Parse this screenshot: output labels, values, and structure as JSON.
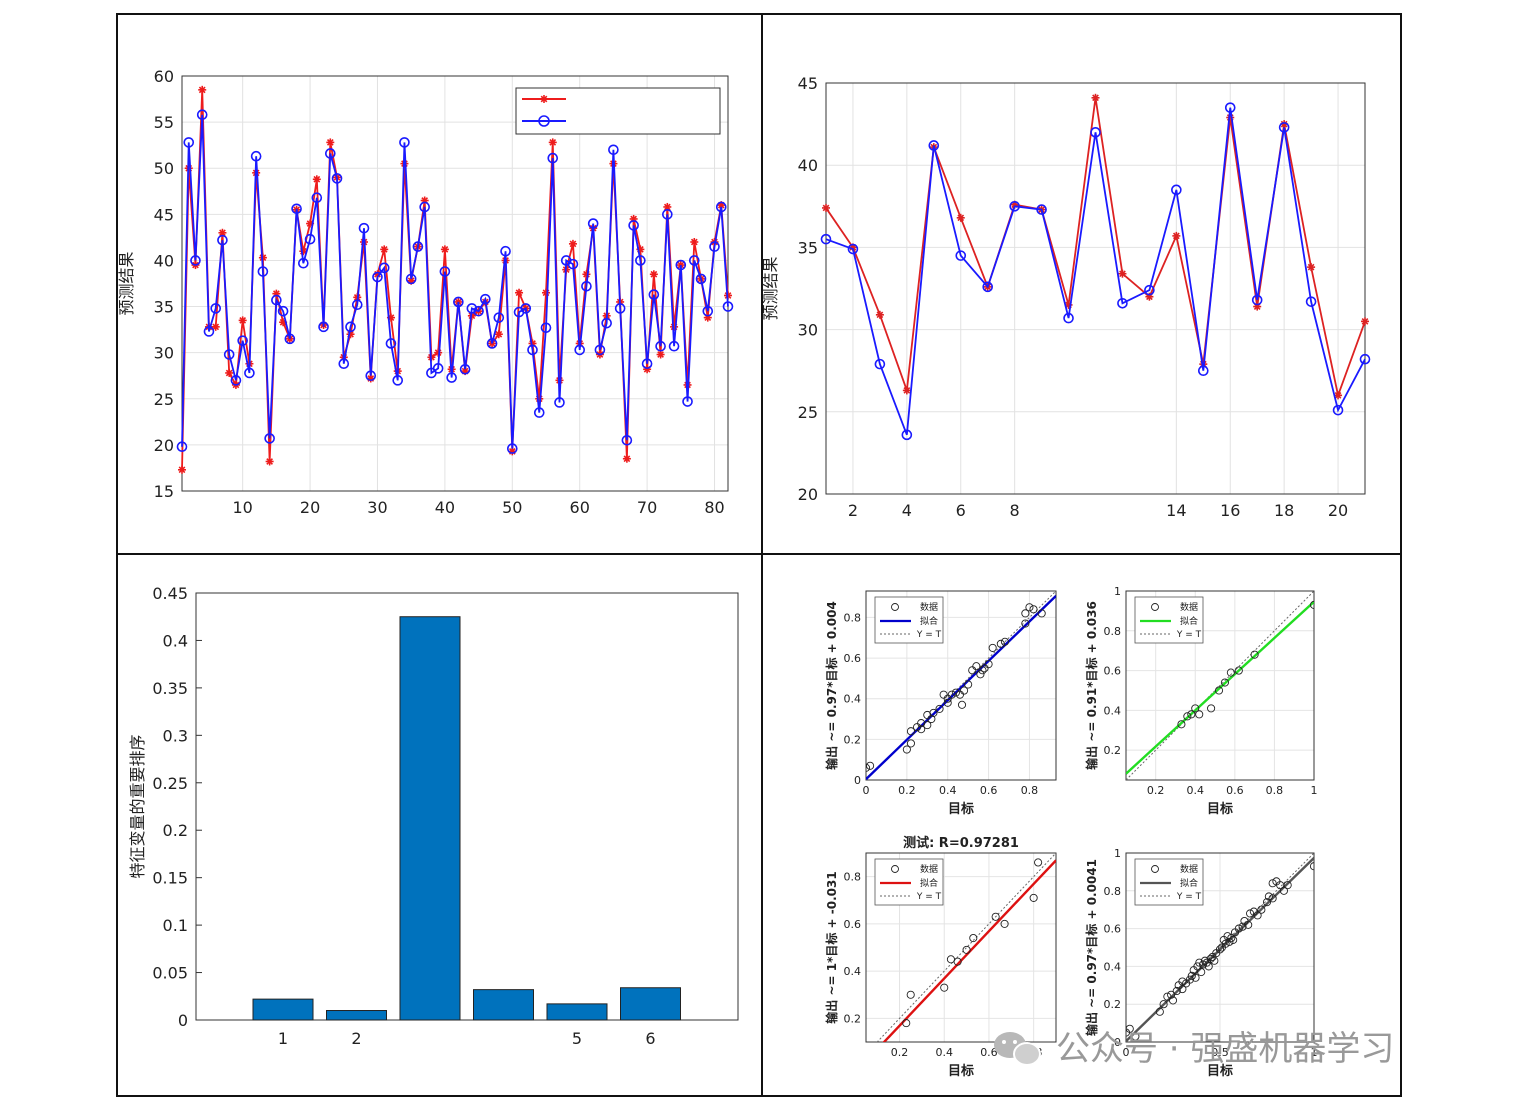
{
  "chart_data": [
    {
      "type": "line",
      "ylabel": "预测结果",
      "ylim": [
        15,
        60
      ],
      "yticks": [
        15,
        20,
        25,
        30,
        35,
        40,
        45,
        50,
        55,
        60
      ],
      "xticks": [
        "10",
        "20",
        "30",
        "40",
        "50",
        "60",
        "70",
        "80"
      ],
      "xlim": [
        1,
        82
      ],
      "grid": true,
      "legend_placement": "top-right",
      "series": [
        {
          "color": "#ee1c1c",
          "marker": "asterisk",
          "values": [
            17.3,
            50.0,
            39.5,
            58.5,
            32.8,
            32.8,
            43.0,
            27.8,
            26.5,
            33.5,
            28.8,
            49.5,
            40.3,
            18.2,
            36.4,
            33.3,
            31.5,
            45.5,
            41.0,
            44.0,
            48.8,
            33.0,
            52.8,
            49.0,
            29.5,
            32.0,
            36.0,
            42.0,
            27.2,
            38.5,
            41.2,
            33.8,
            28.0,
            50.5,
            37.8,
            41.5,
            46.5,
            29.5,
            30.0,
            41.2,
            28.2,
            35.5,
            28.0,
            34.0,
            34.5,
            35.5,
            31.0,
            32.0,
            40.0,
            19.3,
            36.5,
            34.8,
            31.0,
            25.0,
            36.5,
            52.8,
            27.0,
            39.0,
            41.8,
            31.0,
            38.5,
            43.5,
            29.8,
            34.0,
            50.5,
            35.5,
            18.5,
            44.5,
            41.2,
            28.2,
            38.5,
            29.8,
            45.8,
            32.8,
            39.5,
            26.5,
            42.0,
            38.0,
            33.8,
            42.0,
            46.0,
            36.2
          ]
        },
        {
          "color": "#1a1aff",
          "marker": "circle",
          "values": [
            19.8,
            52.8,
            40.0,
            55.8,
            32.3,
            34.8,
            42.2,
            29.8,
            27.0,
            31.3,
            27.8,
            51.3,
            38.8,
            20.7,
            35.7,
            34.5,
            31.5,
            45.6,
            39.7,
            42.3,
            46.8,
            32.8,
            51.6,
            48.9,
            28.8,
            32.8,
            35.2,
            43.5,
            27.5,
            38.2,
            39.2,
            31.0,
            27.0,
            52.8,
            38.0,
            41.5,
            45.8,
            27.8,
            28.3,
            38.8,
            27.3,
            35.5,
            28.2,
            34.8,
            34.5,
            35.8,
            31.0,
            33.8,
            41.0,
            19.6,
            34.4,
            34.8,
            30.3,
            23.5,
            32.7,
            51.1,
            24.6,
            40.0,
            39.6,
            30.3,
            37.2,
            44.0,
            30.3,
            33.2,
            52.0,
            34.8,
            20.5,
            43.8,
            40.0,
            28.8,
            36.3,
            30.7,
            45.0,
            30.7,
            39.5,
            24.7,
            40.0,
            38.0,
            34.5,
            41.5,
            45.8,
            35.0
          ]
        }
      ]
    },
    {
      "type": "line",
      "ylabel": "预测结果",
      "ylim": [
        20,
        45
      ],
      "yticks": [
        20,
        25,
        30,
        35,
        40,
        45
      ],
      "xticks": [
        "2",
        "4",
        "6",
        "8",
        "14",
        "16",
        "18",
        "20"
      ],
      "xlim": [
        1,
        21
      ],
      "grid": true,
      "series": [
        {
          "color": "#dd2222",
          "marker": "asterisk",
          "values": [
            37.4,
            35.0,
            30.9,
            26.3,
            41.1,
            36.8,
            32.6,
            37.6,
            37.3,
            31.5,
            44.1,
            33.4,
            32.0,
            35.7,
            27.9,
            42.9,
            31.4,
            42.5,
            33.8,
            26.0,
            30.5
          ]
        },
        {
          "color": "#1a1aff",
          "marker": "circle",
          "values": [
            35.5,
            34.9,
            27.9,
            23.6,
            41.2,
            34.5,
            32.6,
            37.5,
            37.3,
            30.7,
            42.0,
            31.6,
            32.4,
            38.5,
            27.5,
            43.5,
            31.8,
            42.3,
            31.7,
            25.1,
            28.2
          ]
        }
      ]
    },
    {
      "type": "bar",
      "ylabel": "特征变量的重要排序",
      "ylim": [
        0,
        0.45
      ],
      "yticks": [
        "0",
        "0.05",
        "0.1",
        "0.15",
        "0.2",
        "0.25",
        "0.3",
        "0.35",
        "0.4",
        "0.45"
      ],
      "categories": [
        "1",
        "2",
        "",
        "",
        "5",
        "6"
      ],
      "values": [
        0.022,
        0.01,
        0.425,
        0.032,
        0.017,
        0.034
      ],
      "color": "#0072bd"
    },
    {
      "type": "scatter",
      "panels": [
        {
          "xlabel": "目标",
          "ylabel": "输出 ~= 0.97*目标 + 0.004",
          "xlim": [
            0,
            0.93
          ],
          "ylim": [
            0,
            0.93
          ],
          "xticks": [
            "0",
            "0.2",
            "0.4",
            "0.6",
            "0.8"
          ],
          "yticks": [
            "0",
            "0.2",
            "0.4",
            "0.6",
            "0.8"
          ],
          "slope": 0.97,
          "intercept": 0.004,
          "fit_color": "#0000cc",
          "legend": [
            "数据",
            "拟合",
            "Y = T"
          ],
          "points": [
            [
              0.0,
              0.06
            ],
            [
              0.02,
              0.07
            ],
            [
              0.2,
              0.15
            ],
            [
              0.22,
              0.18
            ],
            [
              0.22,
              0.24
            ],
            [
              0.25,
              0.26
            ],
            [
              0.27,
              0.25
            ],
            [
              0.27,
              0.28
            ],
            [
              0.3,
              0.27
            ],
            [
              0.32,
              0.3
            ],
            [
              0.3,
              0.32
            ],
            [
              0.33,
              0.33
            ],
            [
              0.36,
              0.35
            ],
            [
              0.4,
              0.38
            ],
            [
              0.38,
              0.42
            ],
            [
              0.4,
              0.4
            ],
            [
              0.42,
              0.42
            ],
            [
              0.44,
              0.43
            ],
            [
              0.46,
              0.42
            ],
            [
              0.47,
              0.37
            ],
            [
              0.48,
              0.44
            ],
            [
              0.5,
              0.47
            ],
            [
              0.52,
              0.54
            ],
            [
              0.54,
              0.56
            ],
            [
              0.56,
              0.52
            ],
            [
              0.57,
              0.54
            ],
            [
              0.58,
              0.55
            ],
            [
              0.6,
              0.57
            ],
            [
              0.62,
              0.65
            ],
            [
              0.66,
              0.67
            ],
            [
              0.68,
              0.68
            ],
            [
              0.78,
              0.77
            ],
            [
              0.78,
              0.82
            ],
            [
              0.8,
              0.85
            ],
            [
              0.82,
              0.84
            ],
            [
              0.86,
              0.82
            ]
          ]
        },
        {
          "xlabel": "目标",
          "ylabel": "输出 ~= 0.91*目标 + 0.036",
          "xlim": [
            0.05,
            1.0
          ],
          "ylim": [
            0.05,
            1.0
          ],
          "xticks": [
            "0.2",
            "0.4",
            "0.6",
            "0.8",
            "1"
          ],
          "yticks": [
            "0.2",
            "0.4",
            "0.6",
            "0.8",
            "1"
          ],
          "slope": 0.91,
          "intercept": 0.036,
          "fit_color": "#22dd22",
          "legend": [
            "数据",
            "拟合",
            "Y = T"
          ],
          "points": [
            [
              0.33,
              0.33
            ],
            [
              0.36,
              0.37
            ],
            [
              0.38,
              0.38
            ],
            [
              0.4,
              0.41
            ],
            [
              0.42,
              0.38
            ],
            [
              0.48,
              0.41
            ],
            [
              0.52,
              0.5
            ],
            [
              0.55,
              0.54
            ],
            [
              0.58,
              0.59
            ],
            [
              0.62,
              0.6
            ],
            [
              0.7,
              0.68
            ],
            [
              1.0,
              0.93
            ]
          ]
        },
        {
          "title": "测试: R=0.97281",
          "xlabel": "目标",
          "ylabel": "输出 ~= 1*目标 + -0.031",
          "xlim": [
            0.05,
            0.9
          ],
          "ylim": [
            0.1,
            0.9
          ],
          "xticks": [
            "0.2",
            "0.4",
            "0.6",
            "0.8"
          ],
          "yticks": [
            "0.2",
            "0.4",
            "0.6",
            "0.8"
          ],
          "slope": 1.0,
          "intercept": -0.031,
          "fit_color": "#dd1111",
          "legend": [
            "数据",
            "拟合",
            "Y = T"
          ],
          "points": [
            [
              0.23,
              0.18
            ],
            [
              0.25,
              0.3
            ],
            [
              0.4,
              0.33
            ],
            [
              0.43,
              0.45
            ],
            [
              0.46,
              0.44
            ],
            [
              0.5,
              0.49
            ],
            [
              0.53,
              0.54
            ],
            [
              0.63,
              0.63
            ],
            [
              0.67,
              0.6
            ],
            [
              0.8,
              0.71
            ],
            [
              0.82,
              0.86
            ]
          ]
        },
        {
          "xlabel": "目标",
          "ylabel": "输出 ~= 0.97*目标 + 0.0041",
          "xlim": [
            0,
            1.0
          ],
          "ylim": [
            0,
            1.0
          ],
          "xticks": [
            "0",
            "0.5",
            "1"
          ],
          "yticks": [
            "0",
            "0.2",
            "0.4",
            "0.6",
            "0.8",
            "1"
          ],
          "slope": 0.97,
          "intercept": 0.0041,
          "fit_color": "#555555",
          "legend": [
            "数据",
            "拟合",
            "Y = T"
          ],
          "points": [
            [
              0.0,
              0.05
            ],
            [
              0.02,
              0.07
            ],
            [
              0.05,
              0.03
            ],
            [
              0.18,
              0.16
            ],
            [
              0.2,
              0.2
            ],
            [
              0.22,
              0.24
            ],
            [
              0.24,
              0.25
            ],
            [
              0.25,
              0.22
            ],
            [
              0.27,
              0.27
            ],
            [
              0.28,
              0.3
            ],
            [
              0.3,
              0.28
            ],
            [
              0.3,
              0.32
            ],
            [
              0.32,
              0.31
            ],
            [
              0.34,
              0.33
            ],
            [
              0.35,
              0.35
            ],
            [
              0.36,
              0.38
            ],
            [
              0.37,
              0.34
            ],
            [
              0.38,
              0.4
            ],
            [
              0.39,
              0.42
            ],
            [
              0.4,
              0.37
            ],
            [
              0.41,
              0.41
            ],
            [
              0.42,
              0.43
            ],
            [
              0.43,
              0.42
            ],
            [
              0.44,
              0.4
            ],
            [
              0.45,
              0.44
            ],
            [
              0.46,
              0.45
            ],
            [
              0.47,
              0.43
            ],
            [
              0.48,
              0.47
            ],
            [
              0.5,
              0.49
            ],
            [
              0.51,
              0.5
            ],
            [
              0.52,
              0.54
            ],
            [
              0.53,
              0.52
            ],
            [
              0.54,
              0.56
            ],
            [
              0.55,
              0.53
            ],
            [
              0.56,
              0.55
            ],
            [
              0.57,
              0.54
            ],
            [
              0.58,
              0.58
            ],
            [
              0.6,
              0.6
            ],
            [
              0.62,
              0.61
            ],
            [
              0.63,
              0.64
            ],
            [
              0.65,
              0.62
            ],
            [
              0.66,
              0.68
            ],
            [
              0.68,
              0.69
            ],
            [
              0.7,
              0.67
            ],
            [
              0.72,
              0.7
            ],
            [
              0.75,
              0.74
            ],
            [
              0.76,
              0.77
            ],
            [
              0.78,
              0.76
            ],
            [
              0.78,
              0.84
            ],
            [
              0.8,
              0.85
            ],
            [
              0.82,
              0.83
            ],
            [
              0.84,
              0.8
            ],
            [
              0.86,
              0.83
            ],
            [
              1.0,
              0.93
            ]
          ]
        }
      ]
    }
  ],
  "watermark": "公众号 · 强盛机器学习"
}
